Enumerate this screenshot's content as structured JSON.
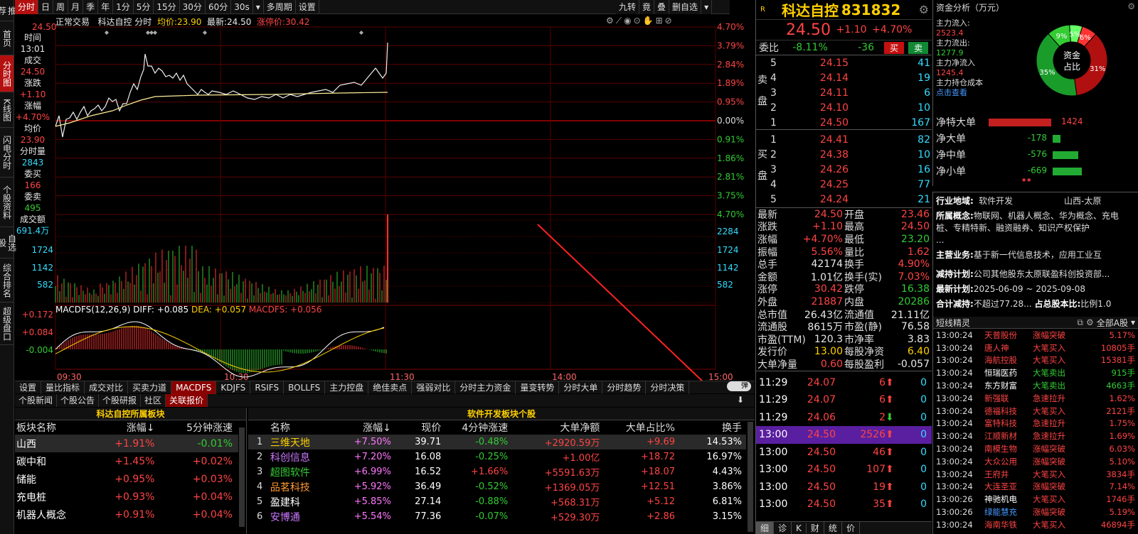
{
  "leftnav": [
    "推荐",
    "首页",
    "分时图",
    "K线图",
    "闪电分时",
    "个股资料",
    "自选股",
    "综合排名",
    "超级盘口"
  ],
  "toolbar": [
    "分时",
    "日",
    "周",
    "月",
    "季",
    "年",
    "1分",
    "5分",
    "15分",
    "30分",
    "60分",
    "30s",
    "▾",
    "多周期",
    "设置"
  ],
  "toolbar_right": [
    "九转",
    "竟",
    "叠",
    "删自选",
    "▾"
  ],
  "chart": {
    "header": "正常交易  科达自控 分时 均价:23.90 最新:24.50 涨停价:30.42",
    "header_parts": {
      "mode": "正常交易",
      "name": "科达自控 分时",
      "avg": "均价:23.90",
      "last": "最新:24.50",
      "limit": "涨停价:30.42"
    },
    "y_left": [
      "24.50",
      "",
      "",
      "",
      "",
      "",
      "",
      "",
      ""
    ],
    "y_right": [
      "4.70%",
      "3.79%",
      "2.84%",
      "1.89%",
      "0.95%",
      "0.00%",
      "0.91%",
      "1.86%",
      "2.81%",
      "3.75%",
      "4.70%"
    ],
    "vol_axis_right": [
      "2284",
      "1724",
      "1142",
      "582"
    ],
    "vol_axis_left": [
      "1724",
      "1142",
      "582"
    ],
    "macd_header": {
      "title": "MACDFS(12,26,9)",
      "diff": "DIFF: +0.085",
      "dea": "DEA: +0.057",
      "macdfs": "MACDFS: +0.056"
    },
    "macd_axis": [
      "+0.172",
      "+0.084",
      "-0.004"
    ],
    "times": [
      "09:30",
      "10:30",
      "11:30",
      "14:00",
      "15:00"
    ]
  },
  "sidepanel": [
    {
      "k": "时间",
      "v": "13:01",
      "c": "white"
    },
    {
      "k": "成交",
      "v": "24.50",
      "c": "red"
    },
    {
      "k": "涨跌",
      "v": "+1.10",
      "c": "red"
    },
    {
      "k": "涨幅",
      "v": "+4.70%",
      "c": "red"
    },
    {
      "k": "均价",
      "v": "23.90",
      "c": "red"
    },
    {
      "k": "分时量",
      "v": "2843",
      "c": "cyan"
    },
    {
      "k": "委买",
      "v": "166",
      "c": "red"
    },
    {
      "k": "委卖",
      "v": "495",
      "c": "green"
    },
    {
      "k": "成交额",
      "v": "691.4万",
      "c": "cyan"
    }
  ],
  "indicator_tabs": [
    "设置",
    "量比指标",
    "成交对比",
    "买卖力道",
    "MACDFS",
    "KDJFS",
    "RSIFS",
    "BOLLFS",
    "主力控盘",
    "绝佳卖点",
    "强弱对比",
    "分时主力资金",
    "量变转势",
    "分时大单",
    "分时趋势",
    "分时决策"
  ],
  "toggle": "弹",
  "news_tabs": [
    "个股新闻",
    "个股公告",
    "个股研报",
    "社区",
    "关联报价"
  ],
  "sector": {
    "title": "科达自控所属板块",
    "cols": [
      "板块名称",
      "涨幅↓",
      "5分钟涨速"
    ],
    "rows": [
      [
        "山西",
        "+1.91%",
        "-0.01%"
      ],
      [
        "碳中和",
        "+1.45%",
        "+0.02%"
      ],
      [
        "储能",
        "+0.95%",
        "+0.03%"
      ],
      [
        "充电桩",
        "+0.93%",
        "+0.04%"
      ],
      [
        "机器人概念",
        "+0.91%",
        "+0.04%"
      ]
    ]
  },
  "stocks": {
    "title": "软件开发板块个股",
    "cols": [
      "名称",
      "涨幅↓",
      "现价",
      "4分钟涨速",
      "大单净额",
      "大单占比%",
      "换手"
    ],
    "rows": [
      [
        "1",
        "三维天地",
        "+7.50%",
        "39.71",
        "-0.48%",
        "+2920.59万",
        "+9.69",
        "14.53%"
      ],
      [
        "2",
        "科创信息",
        "+7.20%",
        "16.08",
        "-0.25%",
        "+1.00亿",
        "+18.72",
        "16.97%"
      ],
      [
        "3",
        "超图软件",
        "+6.99%",
        "16.52",
        "+1.66%",
        "+5591.63万",
        "+18.07",
        "4.43%"
      ],
      [
        "4",
        "品茗科技",
        "+5.92%",
        "36.49",
        "-0.52%",
        "+1369.05万",
        "+12.51",
        "3.86%"
      ],
      [
        "5",
        "盈建科",
        "+5.85%",
        "27.14",
        "-0.88%",
        "+568.31万",
        "+5.12",
        "6.81%"
      ],
      [
        "6",
        "安博通",
        "+5.54%",
        "77.36",
        "-0.07%",
        "+529.30万",
        "+2.86",
        "3.15%"
      ]
    ]
  },
  "quote": {
    "badge": "R",
    "name": "科达自控",
    "code": "831832",
    "price": "24.50",
    "change": "+1.10",
    "pct": "+4.70%",
    "weibi_label": "委比",
    "weibi": "-8.11%",
    "weicha": "-36",
    "buy": "买",
    "sell": "卖",
    "sell_label": "卖盘",
    "buy_label": "买盘",
    "asks": [
      [
        "5",
        "24.15",
        "41"
      ],
      [
        "4",
        "24.14",
        "19"
      ],
      [
        "3",
        "24.11",
        "6"
      ],
      [
        "2",
        "24.10",
        "10"
      ],
      [
        "1",
        "24.50",
        "167"
      ]
    ],
    "bids": [
      [
        "1",
        "24.41",
        "82"
      ],
      [
        "2",
        "24.38",
        "10"
      ],
      [
        "3",
        "24.26",
        "16"
      ],
      [
        "4",
        "24.25",
        "77"
      ],
      [
        "5",
        "24.24",
        "21"
      ]
    ],
    "stats": [
      [
        "最新",
        "24.50",
        "red",
        "开盘",
        "23.46",
        "red"
      ],
      [
        "涨跌",
        "+1.10",
        "red",
        "最高",
        "24.50",
        "red"
      ],
      [
        "涨幅",
        "+4.70%",
        "red",
        "最低",
        "23.20",
        "green"
      ],
      [
        "振幅",
        "5.56%",
        "red",
        "量比",
        "1.62",
        "red"
      ],
      [
        "总手",
        "42174",
        "white",
        "换手",
        "4.90%",
        "red"
      ],
      [
        "金额",
        "1.01亿",
        "white",
        "换手(实)",
        "7.03%",
        "red"
      ],
      [
        "涨停",
        "30.42",
        "red",
        "跌停",
        "16.38",
        "green"
      ],
      [
        "外盘",
        "21887",
        "red",
        "内盘",
        "20286",
        "green"
      ],
      [
        "总市值",
        "26.43亿",
        "white",
        "流通值",
        "21.11亿",
        "white"
      ],
      [
        "流通股",
        "8615万",
        "white",
        "市盈(静)",
        "76.58",
        "white"
      ],
      [
        "市盈(TTM)",
        "120.3",
        "white",
        "市净率",
        "3.83",
        "white"
      ],
      [
        "发行价",
        "13.00",
        "yellow",
        "每股净资",
        "6.40",
        "yellow"
      ],
      [
        "大单净量",
        "0.60",
        "red",
        "每股盈利",
        "-0.057",
        "white"
      ]
    ],
    "ticks": [
      [
        "11:29",
        "24.07",
        "6",
        "up",
        "0"
      ],
      [
        "11:29",
        "24.07",
        "6",
        "up",
        "0"
      ],
      [
        "11:29",
        "24.06",
        "2",
        "down",
        "0"
      ],
      [
        "13:00",
        "24.50",
        "2526",
        "up",
        "0"
      ],
      [
        "13:00",
        "24.50",
        "46",
        "up",
        "0"
      ],
      [
        "13:00",
        "24.50",
        "107",
        "up",
        "0"
      ],
      [
        "13:00",
        "24.50",
        "19",
        "up",
        "0"
      ],
      [
        "13:00",
        "24.50",
        "35",
        "up",
        "0"
      ]
    ],
    "bottom_tabs": [
      "细",
      "诊",
      "K",
      "财",
      "统",
      "价"
    ]
  },
  "funds": {
    "title": "资金分析（万元）",
    "inflow_label": "主力流入:",
    "inflow": "2523.4",
    "outflow_label": "主力流出:",
    "outflow": "1277.9",
    "net_label": "主力净流入",
    "net": "1245.4",
    "cost_label": "主力持仓成本",
    "cost_link": "点击查看",
    "donut_center": "资金\n占比",
    "pie": [
      {
        "label": "6%",
        "pct": 6,
        "color": "#ff3333"
      },
      {
        "label": "31%",
        "pct": 31,
        "color": "#b01010"
      },
      {
        "label": "35%",
        "pct": 35,
        "color": "#1a9c2a"
      },
      {
        "label": "9%",
        "pct": 9,
        "color": "#33cc33"
      },
      {
        "label": "5%",
        "pct": 5,
        "color": "#66ff66"
      }
    ],
    "bars": [
      {
        "label": "净特大单",
        "value": "1424",
        "num": 1424,
        "color": "#c42020"
      },
      {
        "label": "净大单",
        "value": "-178",
        "num": -178,
        "color": "#22aa33"
      },
      {
        "label": "净中单",
        "value": "-576",
        "num": -576,
        "color": "#22aa33"
      },
      {
        "label": "净小单",
        "value": "-669",
        "num": -669,
        "color": "#22aa33"
      }
    ]
  },
  "profile": {
    "industry_label": "行业地域:",
    "industry": "软件开发",
    "region": "山西-太原",
    "concept_label": "所属概念:",
    "concept": "物联网、机器人概念、华为概念、充电桩、专精特新、融资融券、知识产权保护",
    "concept_more": "...",
    "biz_label": "主营业务:",
    "biz": "基于新一代信息技术，应用工业互",
    "reduce_label": "减持计划:",
    "reduce": "公司其他股东太原联盈科创投资部...",
    "latest_label": "最新计划:",
    "latest": "2025-06-09 ~ 2025-09-08",
    "total_label": "合计减持:",
    "total": "不超过77.28...",
    "ratio_label": "占总股本比:",
    "ratio": "比例1.0"
  },
  "sprite": {
    "title": "短线精灵",
    "scope": "全部A股",
    "rows": [
      [
        "13:00:24",
        "天普股份",
        "涨幅突破",
        "5.17%",
        "red"
      ],
      [
        "13:00:24",
        "唐人神",
        "大笔买入",
        "10805手",
        "red"
      ],
      [
        "13:00:24",
        "海航控股",
        "大笔买入",
        "15381手",
        "red"
      ],
      [
        "13:00:24",
        "恒瑞医药",
        "大笔卖出",
        "915手",
        "green"
      ],
      [
        "13:00:24",
        "东方财富",
        "大笔卖出",
        "4663手",
        "green"
      ],
      [
        "13:00:24",
        "新强联",
        "急速拉升",
        "1.62%",
        "red"
      ],
      [
        "13:00:24",
        "德福科技",
        "大笔买入",
        "2121手",
        "red"
      ],
      [
        "13:00:24",
        "富特科技",
        "急速拉升",
        "1.75%",
        "red"
      ],
      [
        "13:00:24",
        "江顺新材",
        "急速拉升",
        "1.69%",
        "red"
      ],
      [
        "13:00:24",
        "南模生物",
        "涨幅突破",
        "6.03%",
        "red"
      ],
      [
        "13:00:24",
        "大众公用",
        "涨幅突破",
        "5.10%",
        "red"
      ],
      [
        "13:00:24",
        "王府井",
        "大笔买入",
        "3834手",
        "red"
      ],
      [
        "13:00:24",
        "大连圣亚",
        "涨幅突破",
        "7.14%",
        "red"
      ],
      [
        "13:00:26",
        "神驰机电",
        "大笔买入",
        "1746手",
        "red"
      ],
      [
        "13:00:26",
        "绿能慧充",
        "涨幅突破",
        "5.19%",
        "red"
      ],
      [
        "13:00:24",
        "海南华铁",
        "大笔买入",
        "46894手",
        "red"
      ]
    ]
  }
}
